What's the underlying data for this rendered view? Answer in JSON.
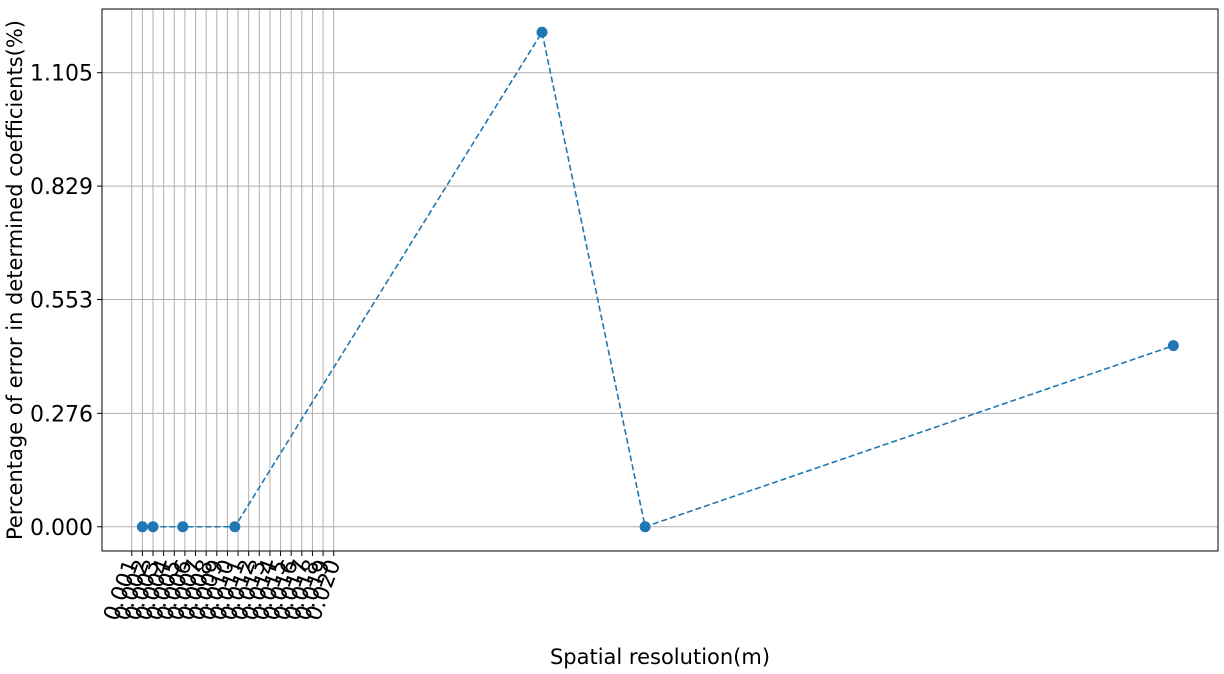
{
  "chart_data": {
    "type": "line",
    "title": "",
    "xlabel": "Spatial resolution(m)",
    "ylabel": "Percentage of error in determined coefficients(%)",
    "xticks": [
      "0.001",
      "0.002",
      "0.003",
      "0.004",
      "0.005",
      "0.006",
      "0.007",
      "0.008",
      "0.009",
      "0.010",
      "0.011",
      "0.012",
      "0.013",
      "0.014",
      "0.015",
      "0.016",
      "0.017",
      "0.018",
      "0.019",
      "0.020"
    ],
    "x_tick_values": [
      0.001,
      0.002,
      0.003,
      0.004,
      0.005,
      0.006,
      0.007,
      0.008,
      0.009,
      0.01,
      0.011,
      0.012,
      0.013,
      0.014,
      0.015,
      0.016,
      0.017,
      0.018,
      0.019,
      0.02
    ],
    "yticks": [
      "0.000",
      "0.276",
      "0.553",
      "0.829",
      "1.105"
    ],
    "y_tick_values": [
      0.0,
      0.276,
      0.553,
      0.829,
      1.105
    ],
    "xlim": [
      -0.0018,
      0.1032
    ],
    "ylim": [
      -0.059,
      1.26
    ],
    "grid": true,
    "series": [
      {
        "line_style": "dashed",
        "marker": "circle",
        "color": "#1f77b4",
        "x": [
          0.002,
          0.003,
          0.0058,
          0.0107,
          0.0396,
          0.0493,
          0.099
        ],
        "y": [
          0.0,
          0.0,
          0.0,
          0.0,
          1.2035,
          0.0,
          0.4407
        ]
      }
    ]
  }
}
